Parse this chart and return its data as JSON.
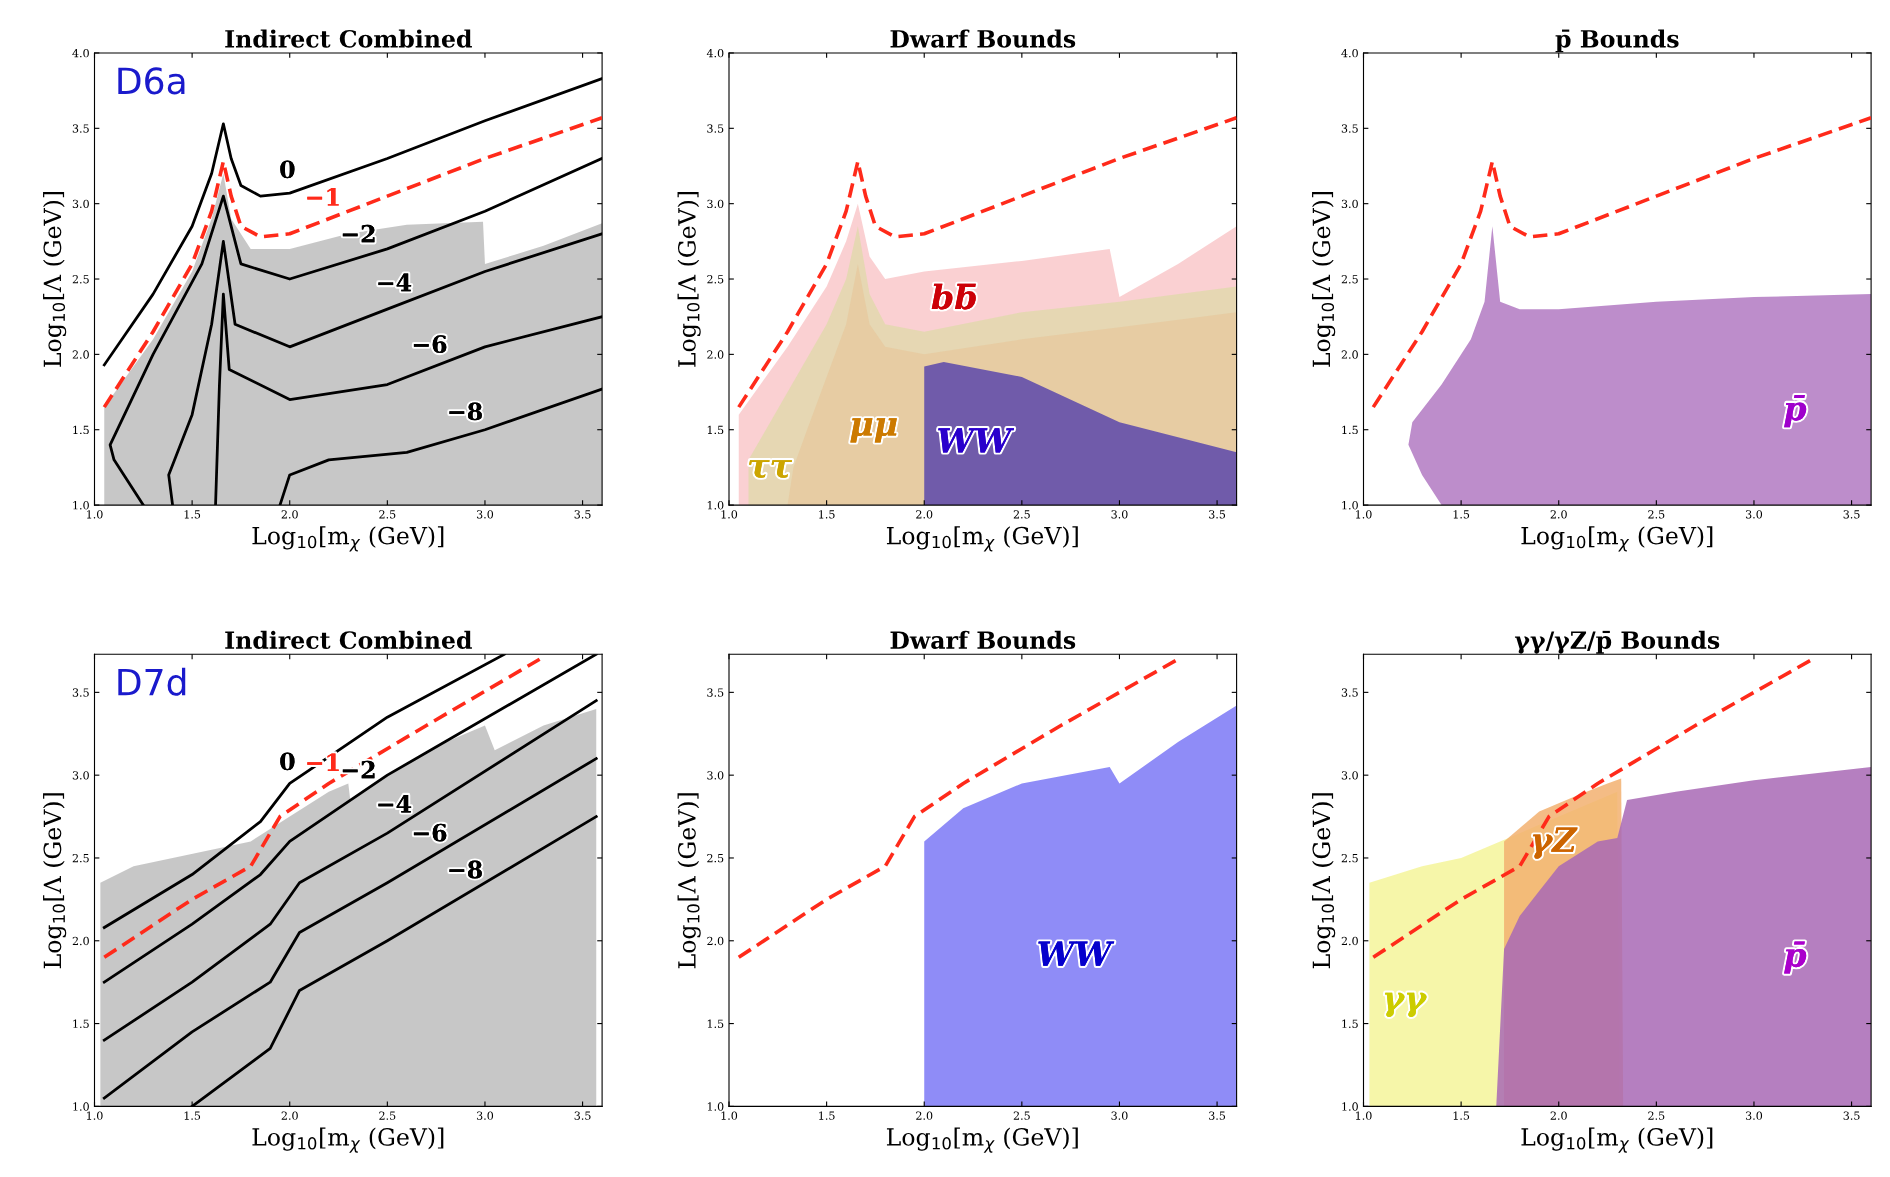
{
  "chart_data": [
    {
      "type": "line",
      "title": "Indirect Combined",
      "xlabel": "Log$_{10}$[m$_{χ}$ (GeV)]",
      "ylabel": "Log$_{10}$[Λ (GeV)]",
      "xlim": [
        1.0,
        3.6
      ],
      "ylim": [
        1.0,
        4.0
      ],
      "xticks": [
        {
          "value": 1.0,
          "label": "1.0"
        },
        {
          "value": 1.5,
          "label": "1.5"
        },
        {
          "value": 2.0,
          "label": "2.0"
        },
        {
          "value": 2.5,
          "label": "2.5"
        },
        {
          "value": 3.0,
          "label": "3.0"
        },
        {
          "value": 3.5,
          "label": "3.5"
        }
      ],
      "yticks": [
        {
          "value": 1.0,
          "label": "1.0"
        },
        {
          "value": 1.5,
          "label": "1.5"
        },
        {
          "value": 2.0,
          "label": "2.0"
        },
        {
          "value": 2.5,
          "label": "2.5"
        },
        {
          "value": 3.0,
          "label": "3.0"
        },
        {
          "value": 3.5,
          "label": "3.5"
        },
        {
          "value": 4.0,
          "label": "4.0"
        }
      ],
      "series": [
        {
          "type": "area",
          "color": "#bdbdbd",
          "x": [
            1.05,
            1.05,
            1.3,
            1.5,
            1.6,
            1.66,
            1.7,
            1.8,
            2.0,
            2.3,
            2.6,
            2.99,
            3.0,
            3.3,
            3.6
          ],
          "values": [
            1.0,
            1.65,
            2.1,
            2.55,
            2.9,
            3.2,
            2.9,
            2.7,
            2.7,
            2.8,
            2.86,
            2.88,
            2.6,
            2.72,
            2.87
          ]
        },
        {
          "type": "line",
          "name": "0",
          "color": "#000000",
          "line_style": "solid",
          "x": [
            1.05,
            1.3,
            1.5,
            1.6,
            1.66,
            1.7,
            1.75,
            1.85,
            2.0,
            2.5,
            3.0,
            3.6
          ],
          "values": [
            1.93,
            2.4,
            2.85,
            3.2,
            3.53,
            3.3,
            3.12,
            3.05,
            3.07,
            3.3,
            3.55,
            3.83
          ]
        },
        {
          "type": "line",
          "name": "−1",
          "color": "#ff2a1a",
          "line_style": "dashed",
          "x": [
            1.05,
            1.3,
            1.5,
            1.6,
            1.66,
            1.7,
            1.75,
            1.85,
            2.0,
            2.5,
            3.0,
            3.6
          ],
          "values": [
            1.65,
            2.15,
            2.6,
            2.95,
            3.28,
            3.05,
            2.85,
            2.78,
            2.8,
            3.05,
            3.3,
            3.57
          ]
        },
        {
          "type": "line",
          "name": "−2",
          "color": "#000000",
          "line_style": "solid",
          "x": [
            1.25,
            1.1,
            1.08,
            1.3,
            1.55,
            1.66,
            1.75,
            2.0,
            2.5,
            3.0,
            3.6
          ],
          "values": [
            1.0,
            1.3,
            1.4,
            2.0,
            2.6,
            3.05,
            2.6,
            2.5,
            2.7,
            2.95,
            3.3
          ]
        },
        {
          "type": "line",
          "name": "−4",
          "color": "#000000",
          "line_style": "solid",
          "x": [
            1.4,
            1.38,
            1.5,
            1.6,
            1.66,
            1.72,
            2.0,
            2.5,
            3.0,
            3.6
          ],
          "values": [
            1.0,
            1.2,
            1.6,
            2.2,
            2.75,
            2.2,
            2.05,
            2.3,
            2.55,
            2.8
          ]
        },
        {
          "type": "line",
          "name": "−6",
          "color": "#000000",
          "line_style": "solid",
          "x": [
            1.62,
            1.64,
            1.66,
            1.69,
            2.0,
            2.5,
            3.0,
            3.6
          ],
          "values": [
            1.0,
            1.8,
            2.4,
            1.9,
            1.7,
            1.8,
            2.05,
            2.25
          ]
        },
        {
          "type": "line",
          "name": "−8",
          "color": "#000000",
          "line_style": "solid",
          "x": [
            1.95,
            2.0,
            2.2,
            2.6,
            3.0,
            3.6
          ],
          "values": [
            1.0,
            1.2,
            1.3,
            1.35,
            1.5,
            1.77
          ]
        }
      ],
      "annotations": [
        "D6a"
      ]
    },
    {
      "type": "line",
      "title": "Dwarf Bounds",
      "xlabel": "Log$_{10}$[m$_{χ}$ (GeV)]",
      "ylabel": "Log$_{10}$[Λ (GeV)]",
      "xlim": [
        1.0,
        3.6
      ],
      "ylim": [
        1.0,
        4.0
      ],
      "xticks": [
        {
          "value": 1.0,
          "label": "1.0"
        },
        {
          "value": 1.5,
          "label": "1.5"
        },
        {
          "value": 2.0,
          "label": "2.0"
        },
        {
          "value": 2.5,
          "label": "2.5"
        },
        {
          "value": 3.0,
          "label": "3.0"
        },
        {
          "value": 3.5,
          "label": "3.5"
        }
      ],
      "yticks": [
        {
          "value": 1.0,
          "label": "1.0"
        },
        {
          "value": 1.5,
          "label": "1.5"
        },
        {
          "value": 2.0,
          "label": "2.0"
        },
        {
          "value": 2.5,
          "label": "2.5"
        },
        {
          "value": 3.0,
          "label": "3.0"
        },
        {
          "value": 3.5,
          "label": "3.5"
        },
        {
          "value": 4.0,
          "label": "4.0"
        }
      ],
      "series": [
        {
          "type": "area",
          "name": "bb̄",
          "color": "#f9c8ca",
          "x": [
            1.05,
            1.05,
            1.3,
            1.5,
            1.6,
            1.66,
            1.72,
            1.8,
            2.0,
            2.5,
            2.95,
            3.0,
            3.3,
            3.6
          ],
          "values": [
            1.0,
            1.6,
            2.05,
            2.45,
            2.75,
            3.0,
            2.65,
            2.5,
            2.55,
            2.62,
            2.7,
            2.38,
            2.6,
            2.85
          ]
        },
        {
          "type": "area",
          "name": "ττ",
          "color": "#e2d8ae",
          "x": [
            1.1,
            1.1,
            1.3,
            1.5,
            1.6,
            1.66,
            1.72,
            1.8,
            2.0,
            2.5,
            3.0,
            3.6
          ],
          "values": [
            1.0,
            1.3,
            1.75,
            2.2,
            2.5,
            2.85,
            2.4,
            2.2,
            2.15,
            2.28,
            2.35,
            2.45
          ]
        },
        {
          "type": "area",
          "name": "μμ",
          "color": "#e6caa0",
          "x": [
            1.3,
            1.33,
            1.4,
            1.5,
            1.6,
            1.66,
            1.72,
            1.8,
            2.0,
            2.5,
            3.0,
            3.6
          ],
          "values": [
            1.0,
            1.25,
            1.5,
            1.85,
            2.2,
            2.6,
            2.2,
            2.05,
            2.0,
            2.1,
            2.18,
            2.28
          ]
        },
        {
          "type": "area",
          "name": "WW",
          "color": "#5b46ab",
          "x": [
            2.0,
            2.0,
            2.1,
            2.5,
            3.0,
            3.6
          ],
          "values": [
            1.0,
            1.92,
            1.95,
            1.85,
            1.55,
            1.35
          ]
        },
        {
          "type": "line",
          "color": "#ff2a1a",
          "line_style": "dashed",
          "x": [
            1.05,
            1.3,
            1.5,
            1.6,
            1.66,
            1.7,
            1.75,
            1.85,
            2.0,
            2.5,
            3.0,
            3.6
          ],
          "values": [
            1.65,
            2.15,
            2.6,
            2.95,
            3.28,
            3.05,
            2.85,
            2.78,
            2.8,
            3.05,
            3.3,
            3.57
          ]
        }
      ]
    },
    {
      "type": "line",
      "title": "p̄ Bounds",
      "xlabel": "Log$_{10}$[m$_{χ}$ (GeV)]",
      "ylabel": "Log$_{10}$[Λ (GeV)]",
      "xlim": [
        1.0,
        3.6
      ],
      "ylim": [
        1.0,
        4.0
      ],
      "xticks": [
        {
          "value": 1.0,
          "label": "1.0"
        },
        {
          "value": 1.5,
          "label": "1.5"
        },
        {
          "value": 2.0,
          "label": "2.0"
        },
        {
          "value": 2.5,
          "label": "2.5"
        },
        {
          "value": 3.0,
          "label": "3.0"
        },
        {
          "value": 3.5,
          "label": "3.5"
        }
      ],
      "yticks": [
        {
          "value": 1.0,
          "label": "1.0"
        },
        {
          "value": 1.5,
          "label": "1.5"
        },
        {
          "value": 2.0,
          "label": "2.0"
        },
        {
          "value": 2.5,
          "label": "2.5"
        },
        {
          "value": 3.0,
          "label": "3.0"
        },
        {
          "value": 3.5,
          "label": "3.5"
        },
        {
          "value": 4.0,
          "label": "4.0"
        }
      ],
      "series": [
        {
          "type": "area",
          "name": "p̄",
          "color": "#b279c2",
          "x": [
            1.4,
            1.3,
            1.23,
            1.25,
            1.4,
            1.55,
            1.62,
            1.66,
            1.7,
            1.8,
            2.0,
            2.5,
            3.0,
            3.6
          ],
          "values": [
            1.0,
            1.2,
            1.4,
            1.55,
            1.8,
            2.1,
            2.35,
            2.85,
            2.35,
            2.3,
            2.3,
            2.35,
            2.38,
            2.4
          ]
        },
        {
          "type": "line",
          "color": "#ff2a1a",
          "line_style": "dashed",
          "x": [
            1.05,
            1.3,
            1.5,
            1.6,
            1.66,
            1.7,
            1.75,
            1.85,
            2.0,
            2.5,
            3.0,
            3.6
          ],
          "values": [
            1.65,
            2.15,
            2.6,
            2.95,
            3.28,
            3.05,
            2.85,
            2.78,
            2.8,
            3.05,
            3.3,
            3.57
          ]
        }
      ]
    },
    {
      "type": "line",
      "title": "Indirect Combined",
      "xlabel": "Log$_{10}$[m$_{χ}$ (GeV)]",
      "ylabel": "Log$_{10}$[Λ (GeV)]",
      "xlim": [
        1.0,
        3.6
      ],
      "ylim": [
        1.0,
        3.73
      ],
      "xticks": [
        {
          "value": 1.0,
          "label": "1.0"
        },
        {
          "value": 1.5,
          "label": "1.5"
        },
        {
          "value": 2.0,
          "label": "2.0"
        },
        {
          "value": 2.5,
          "label": "2.5"
        },
        {
          "value": 3.0,
          "label": "3.0"
        },
        {
          "value": 3.5,
          "label": "3.5"
        }
      ],
      "yticks": [
        {
          "value": 1.0,
          "label": "1.0"
        },
        {
          "value": 1.5,
          "label": "1.5"
        },
        {
          "value": 2.0,
          "label": "2.0"
        },
        {
          "value": 2.5,
          "label": "2.5"
        },
        {
          "value": 3.0,
          "label": "3.0"
        },
        {
          "value": 3.5,
          "label": "3.5"
        }
      ],
      "series": [
        {
          "type": "area",
          "color": "#bdbdbd",
          "x": [
            1.03,
            1.03,
            1.2,
            1.4,
            1.6,
            1.8,
            2.0,
            2.2,
            2.3,
            2.31,
            2.5,
            2.8,
            3.0,
            3.05,
            3.3,
            3.57
          ],
          "values": [
            1.0,
            2.35,
            2.45,
            2.5,
            2.55,
            2.6,
            2.75,
            2.9,
            2.95,
            2.85,
            3.0,
            3.2,
            3.3,
            3.15,
            3.3,
            3.4
          ]
        },
        {
          "type": "line",
          "name": "0",
          "color": "#000000",
          "line_style": "solid",
          "x": [
            1.05,
            1.5,
            1.85,
            2.0,
            2.5,
            3.1
          ],
          "values": [
            2.08,
            2.4,
            2.72,
            2.95,
            3.35,
            3.73
          ]
        },
        {
          "type": "line",
          "name": "−1",
          "color": "#ff2a1a",
          "line_style": "dashed",
          "x": [
            1.05,
            1.5,
            1.8,
            1.95,
            2.2,
            2.7,
            3.28
          ],
          "values": [
            1.9,
            2.25,
            2.45,
            2.75,
            2.95,
            3.3,
            3.7
          ]
        },
        {
          "type": "line",
          "name": "−2",
          "color": "#000000",
          "line_style": "solid",
          "x": [
            1.05,
            1.5,
            1.85,
            2.0,
            2.5,
            3.57
          ],
          "values": [
            1.75,
            2.1,
            2.4,
            2.6,
            3.0,
            3.73
          ]
        },
        {
          "type": "line",
          "name": "−4",
          "color": "#000000",
          "line_style": "solid",
          "x": [
            1.05,
            1.5,
            1.9,
            2.05,
            2.5,
            3.57
          ],
          "values": [
            1.4,
            1.75,
            2.1,
            2.35,
            2.65,
            3.45
          ]
        },
        {
          "type": "line",
          "name": "−6",
          "color": "#000000",
          "line_style": "solid",
          "x": [
            1.05,
            1.5,
            1.9,
            2.05,
            2.5,
            3.57
          ],
          "values": [
            1.05,
            1.45,
            1.75,
            2.05,
            2.35,
            3.1
          ]
        },
        {
          "type": "line",
          "name": "−8",
          "color": "#000000",
          "line_style": "solid",
          "x": [
            1.5,
            1.9,
            2.05,
            2.5,
            3.57
          ],
          "values": [
            1.0,
            1.35,
            1.7,
            2.0,
            2.75
          ]
        }
      ],
      "annotations": [
        "D7d"
      ]
    },
    {
      "type": "line",
      "title": "Dwarf Bounds",
      "xlabel": "Log$_{10}$[m$_{χ}$ (GeV)]",
      "ylabel": "Log$_{10}$[Λ (GeV)]",
      "xlim": [
        1.0,
        3.6
      ],
      "ylim": [
        1.0,
        3.73
      ],
      "xticks": [
        {
          "value": 1.0,
          "label": "1.0"
        },
        {
          "value": 1.5,
          "label": "1.5"
        },
        {
          "value": 2.0,
          "label": "2.0"
        },
        {
          "value": 2.5,
          "label": "2.5"
        },
        {
          "value": 3.0,
          "label": "3.0"
        },
        {
          "value": 3.5,
          "label": "3.5"
        }
      ],
      "yticks": [
        {
          "value": 1.0,
          "label": "1.0"
        },
        {
          "value": 1.5,
          "label": "1.5"
        },
        {
          "value": 2.0,
          "label": "2.0"
        },
        {
          "value": 2.5,
          "label": "2.5"
        },
        {
          "value": 3.0,
          "label": "3.0"
        },
        {
          "value": 3.5,
          "label": "3.5"
        }
      ],
      "series": [
        {
          "type": "area",
          "name": "WW",
          "color": "#7b78f6",
          "x": [
            2.0,
            2.0,
            2.2,
            2.5,
            2.95,
            3.0,
            3.3,
            3.6
          ],
          "values": [
            1.0,
            2.6,
            2.8,
            2.95,
            3.05,
            2.95,
            3.2,
            3.42
          ]
        },
        {
          "type": "line",
          "color": "#ff2a1a",
          "line_style": "dashed",
          "x": [
            1.05,
            1.5,
            1.8,
            1.95,
            2.2,
            2.7,
            3.3
          ],
          "values": [
            1.9,
            2.25,
            2.45,
            2.75,
            2.95,
            3.3,
            3.7
          ]
        }
      ]
    },
    {
      "type": "line",
      "title": "γγ/γZ/p̄ Bounds",
      "xlabel": "Log$_{10}$[m$_{χ}$ (GeV)]",
      "ylabel": "Log$_{10}$[Λ (GeV)]",
      "xlim": [
        1.0,
        3.6
      ],
      "ylim": [
        1.0,
        3.73
      ],
      "xticks": [
        {
          "value": 1.0,
          "label": "1.0"
        },
        {
          "value": 1.5,
          "label": "1.5"
        },
        {
          "value": 2.0,
          "label": "2.0"
        },
        {
          "value": 2.5,
          "label": "2.5"
        },
        {
          "value": 3.0,
          "label": "3.0"
        },
        {
          "value": 3.5,
          "label": "3.5"
        }
      ],
      "yticks": [
        {
          "value": 1.0,
          "label": "1.0"
        },
        {
          "value": 1.5,
          "label": "1.5"
        },
        {
          "value": 2.0,
          "label": "2.0"
        },
        {
          "value": 2.5,
          "label": "2.5"
        },
        {
          "value": 3.0,
          "label": "3.0"
        },
        {
          "value": 3.5,
          "label": "3.5"
        }
      ],
      "series": [
        {
          "type": "area",
          "name": "γγ",
          "color": "#f5f59a",
          "x": [
            1.03,
            1.03,
            1.3,
            1.5,
            1.7,
            1.9,
            2.1,
            2.3,
            2.31
          ],
          "values": [
            1.0,
            2.35,
            2.45,
            2.5,
            2.6,
            2.7,
            2.8,
            2.9,
            1.0
          ]
        },
        {
          "type": "area",
          "name": "γZ",
          "color": "#f2b070",
          "x": [
            1.72,
            1.72,
            1.9,
            2.1,
            2.25,
            2.32,
            2.33
          ],
          "values": [
            1.0,
            2.6,
            2.78,
            2.88,
            2.95,
            2.98,
            1.0
          ]
        },
        {
          "type": "area",
          "name": "p̄",
          "color": "#a868b5",
          "x": [
            1.68,
            1.72,
            1.8,
            1.9,
            2.0,
            2.2,
            2.3,
            2.35,
            2.6,
            3.0,
            3.6
          ],
          "values": [
            1.0,
            1.95,
            2.15,
            2.3,
            2.45,
            2.6,
            2.62,
            2.85,
            2.9,
            2.97,
            3.05
          ]
        },
        {
          "type": "line",
          "color": "#ff2a1a",
          "line_style": "dashed",
          "x": [
            1.05,
            1.5,
            1.8,
            1.95,
            2.2,
            2.7,
            3.3
          ],
          "values": [
            1.9,
            2.25,
            2.45,
            2.75,
            2.95,
            3.3,
            3.7
          ]
        }
      ]
    }
  ]
}
